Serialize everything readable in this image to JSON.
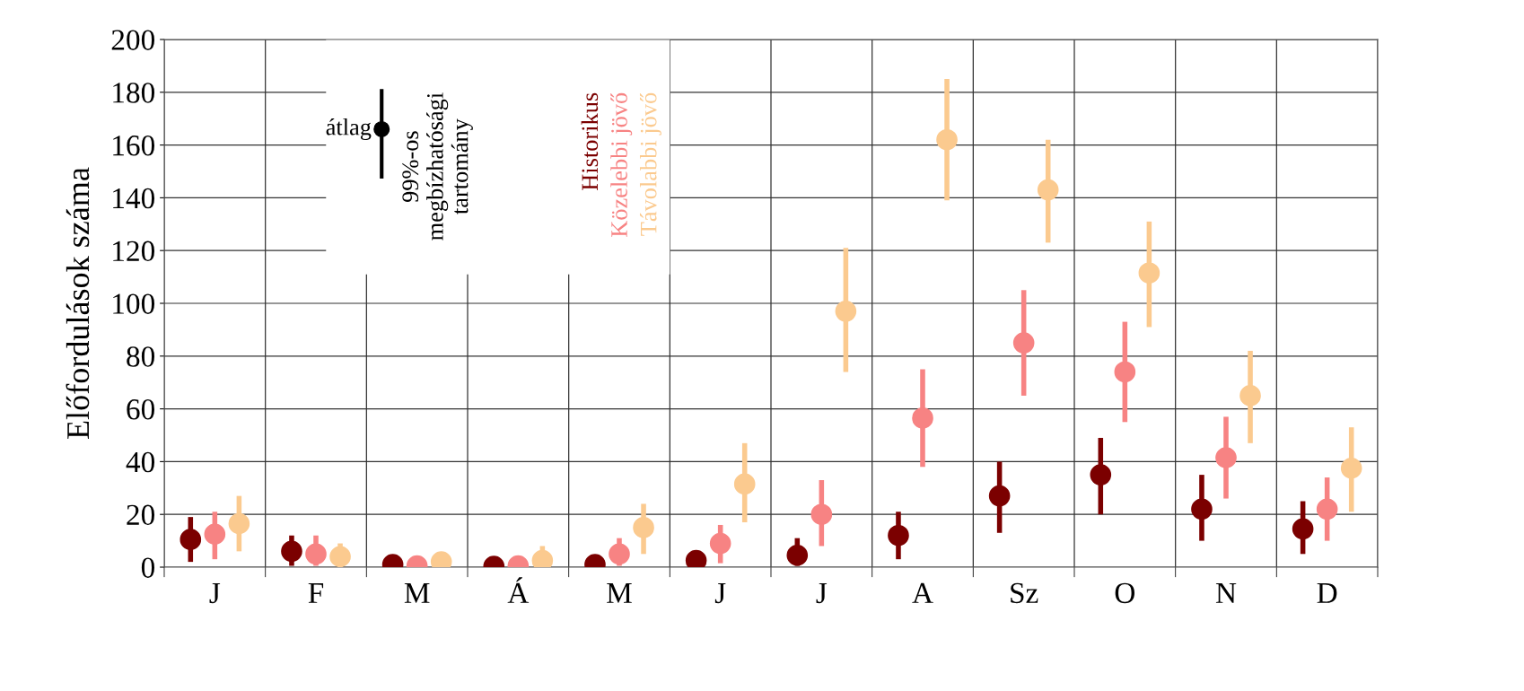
{
  "chart_data": {
    "type": "scatter",
    "ylabel": "Előfordulások száma",
    "categories": [
      "J",
      "F",
      "M",
      "Á",
      "M",
      "J",
      "J",
      "A",
      "Sz",
      "O",
      "N",
      "D"
    ],
    "ylim": [
      0,
      200
    ],
    "yticks": [
      0,
      20,
      40,
      60,
      80,
      100,
      120,
      140,
      160,
      180,
      200
    ],
    "grid": true,
    "marker": "circle",
    "legend": "top left",
    "annotations": [
      "átlag",
      "99%-os\nmegbízhatósági\ntartomány"
    ],
    "series": [
      {
        "name": "Historikus",
        "color": "#7b0000",
        "values": [
          10.5,
          6,
          1,
          0.3,
          1,
          2.5,
          4.5,
          12,
          27,
          35,
          22,
          14.5
        ],
        "errors": [
          [
            2,
            19
          ],
          [
            0.5,
            12
          ],
          null,
          null,
          null,
          [
            0,
            6
          ],
          [
            0.5,
            11
          ],
          [
            3,
            21
          ],
          [
            13,
            40
          ],
          [
            20,
            49
          ],
          [
            10,
            35
          ],
          [
            5,
            25
          ]
        ]
      },
      {
        "name": "Közelebbi jövő",
        "color": "#f78383",
        "values": [
          12.5,
          5,
          0.5,
          0.5,
          5,
          9,
          20,
          56.5,
          85,
          74,
          41.5,
          22
        ],
        "errors": [
          [
            3,
            21
          ],
          [
            0.5,
            12
          ],
          null,
          null,
          [
            0.5,
            11
          ],
          [
            1.5,
            16
          ],
          [
            8,
            33
          ],
          [
            38,
            75
          ],
          [
            65,
            105
          ],
          [
            55,
            93
          ],
          [
            26,
            57
          ],
          [
            10,
            34
          ]
        ]
      },
      {
        "name": "Távolabbi jövő",
        "color": "#fbca8f",
        "values": [
          16.5,
          4,
          2,
          2.5,
          15,
          31.5,
          97,
          162,
          143,
          111.5,
          65,
          37.5
        ],
        "errors": [
          [
            6,
            27
          ],
          [
            0,
            9
          ],
          null,
          [
            0.5,
            8
          ],
          [
            5,
            24
          ],
          [
            17,
            47
          ],
          [
            74,
            121
          ],
          [
            139,
            185
          ],
          [
            123,
            162
          ],
          [
            91,
            131
          ],
          [
            47,
            82
          ],
          [
            21,
            53
          ]
        ]
      }
    ]
  }
}
